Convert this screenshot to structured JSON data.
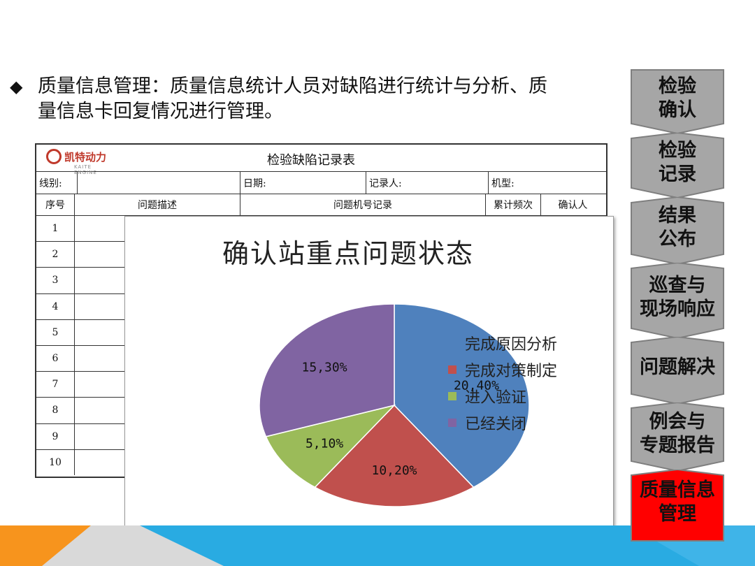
{
  "bullet": {
    "symbol": "◆",
    "line1": "质量信息管理：质量信息统计人员对缺陷进行统计与分析、质",
    "line2": "量信息卡回复情况进行管理。"
  },
  "form": {
    "logo_text": "凯特动力",
    "logo_sub": "KAITE ENGINE",
    "title": "检验缺陷记录表",
    "line_label": "线别:",
    "date_label": "日期:",
    "recorder_label": "记录人:",
    "model_label": "机型:",
    "headers": {
      "seq": "序号",
      "desc": "问题描述",
      "machine": "问题机号记录",
      "freq": "累计频次",
      "confirm": "确认人"
    },
    "rows": [
      "1",
      "2",
      "3",
      "4",
      "5",
      "6",
      "7",
      "8",
      "9",
      "10"
    ]
  },
  "chart_data": {
    "type": "pie",
    "title": "确认站重点问题状态",
    "categories": [
      "完成原因分析",
      "完成对策制定",
      "进入验证",
      "已经关闭"
    ],
    "values": [
      20,
      10,
      5,
      15
    ],
    "percents": [
      40,
      20,
      10,
      30
    ],
    "labels": [
      "20,40%",
      "10,20%",
      "5,10%",
      "15,30%"
    ],
    "colors": [
      "#4f81bd",
      "#c0504d",
      "#9bbb59",
      "#8064a2"
    ],
    "legend_position": "right"
  },
  "sidebar": {
    "steps": [
      {
        "label": "检验\n确认",
        "active": false
      },
      {
        "label": "检验\n记录",
        "active": false
      },
      {
        "label": "结果\n公布",
        "active": false
      },
      {
        "label": "巡查与\n现场响应",
        "active": false
      },
      {
        "label": "问题解决",
        "active": false
      },
      {
        "label": "例会与\n专题报告",
        "active": false
      },
      {
        "label": "质量信息\n管理",
        "active": true
      }
    ],
    "colors": {
      "inactive": "#a6a6a6",
      "active": "#ff0000"
    }
  }
}
